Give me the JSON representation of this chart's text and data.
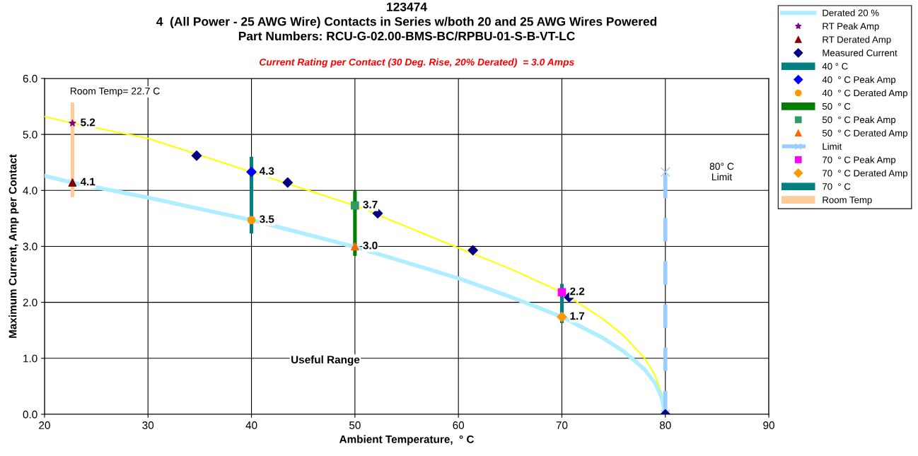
{
  "chart_data": {
    "type": "line",
    "title": "123474\n4  (All Power - 25 AWG Wire) Contacts in Series w/both 20 and 25 AWG Wires Powered\nPart Numbers: RCU-G-02.00-BMS-BC/RPBU-01-S-B-VT-LC",
    "subtitle": "Current Rating per Contact (30 Deg. Rise, 20% Derated)  = 3.0 Amps",
    "xlabel": "Ambient Temperature,  ° C",
    "ylabel": "Maximum Current, Amp per Contact",
    "xlim": [
      20,
      90
    ],
    "xticks": [
      20,
      30,
      40,
      50,
      60,
      70,
      80,
      90
    ],
    "ylim": [
      0,
      6
    ],
    "yticks": [
      {
        "value": 0,
        "label": "0.0"
      },
      {
        "value": 1,
        "label": "1.0"
      },
      {
        "value": 2,
        "label": "2.0"
      },
      {
        "value": 3,
        "label": "3.0"
      },
      {
        "value": 4,
        "label": "4.0"
      },
      {
        "value": 5,
        "label": "5.0"
      },
      {
        "value": 6,
        "label": "6.0"
      }
    ],
    "grid": true,
    "legend": "right",
    "annotations": [
      "Room Temp= 22.7 C",
      "80° C\nLimit",
      "Useful Range"
    ],
    "series": [
      {
        "color": "#ffff00",
        "x": [
          20,
          22.7,
          30,
          40,
          50,
          60,
          65,
          70,
          74,
          76,
          78,
          79,
          79.6,
          80
        ],
        "values": [
          5.32,
          5.2,
          4.93,
          4.33,
          3.73,
          2.97,
          2.6,
          2.18,
          1.7,
          1.4,
          1.0,
          0.7,
          0.4,
          0
        ]
      },
      {
        "type": "line",
        "name": "Derated 20 %",
        "color": "#aeeeff",
        "x": [
          20,
          22.7,
          30,
          40,
          50,
          60,
          65,
          70,
          74,
          76,
          78,
          79,
          79.6,
          80
        ],
        "values": [
          4.26,
          4.14,
          3.87,
          3.47,
          2.99,
          2.43,
          2.1,
          1.74,
          1.36,
          1.12,
          0.8,
          0.56,
          0.32,
          0
        ]
      },
      {
        "type": "scatter",
        "name": "RT Peak Amp",
        "color": "#800080",
        "marker": "star",
        "x": [
          22.7
        ],
        "values": [
          5.2
        ],
        "value_labels": [
          "5.2"
        ]
      },
      {
        "type": "scatter",
        "name": "RT Derated Amp",
        "color": "#800000",
        "marker": "triangle",
        "x": [
          22.7
        ],
        "values": [
          4.14
        ],
        "value_labels": [
          "4.1"
        ]
      },
      {
        "type": "scatter",
        "name": "Measured Current",
        "color": "#000080",
        "marker": "diamond",
        "x": [
          34.7,
          43.5,
          52.2,
          61.4,
          70.7,
          80
        ],
        "values": [
          4.62,
          4.14,
          3.59,
          2.93,
          2.09,
          0
        ]
      },
      {
        "type": "bar",
        "name": "40 ° C",
        "color": "#008080",
        "x": [
          40
        ],
        "base": [
          3.23
        ],
        "values": [
          1.37
        ]
      },
      {
        "type": "scatter",
        "name": "40  ° C Peak Amp",
        "color": "#0000ff",
        "marker": "diamond",
        "x": [
          40
        ],
        "values": [
          4.33
        ],
        "value_labels": [
          "4.3"
        ]
      },
      {
        "type": "scatter",
        "name": "40  ° C Derated Amp",
        "color": "#ff9900",
        "marker": "circle",
        "x": [
          40
        ],
        "values": [
          3.47
        ],
        "value_labels": [
          "3.5"
        ]
      },
      {
        "type": "bar",
        "name": "50  ° C",
        "color": "#008000",
        "x": [
          50
        ],
        "base": [
          2.83
        ],
        "values": [
          1.16
        ]
      },
      {
        "type": "scatter",
        "name": "50  ° C Peak Amp",
        "color": "#339966",
        "marker": "square",
        "x": [
          50
        ],
        "values": [
          3.73
        ],
        "value_labels": [
          "3.7"
        ]
      },
      {
        "type": "scatter",
        "name": "50  ° C Derated Amp",
        "color": "#ff6600",
        "marker": "triangle",
        "x": [
          50
        ],
        "values": [
          3.0
        ],
        "value_labels": [
          "3.0"
        ]
      },
      {
        "type": "line",
        "name": "Limit",
        "color": "#99ccff",
        "marker": "cross",
        "line_style": "dashed",
        "x": [
          80,
          80
        ],
        "values": [
          0,
          4.33
        ]
      },
      {
        "type": "scatter",
        "name": "70  ° C Peak Amp",
        "color": "#ff00ff",
        "marker": "square",
        "x": [
          70
        ],
        "values": [
          2.18
        ],
        "value_labels": [
          "2.2"
        ]
      },
      {
        "type": "scatter",
        "name": "70  ° C Derated Amp",
        "color": "#ff9900",
        "marker": "diamond",
        "x": [
          70
        ],
        "values": [
          1.74
        ],
        "value_labels": [
          "1.7"
        ]
      },
      {
        "type": "bar",
        "name": "70  ° C",
        "color": "#008080",
        "x": [
          70
        ],
        "base": [
          1.63
        ],
        "values": [
          0.7
        ]
      },
      {
        "type": "bar",
        "name": "Room Temp",
        "color": "#ffcc99",
        "x": [
          22.7
        ],
        "base": [
          3.88
        ],
        "values": [
          1.69
        ]
      }
    ]
  }
}
